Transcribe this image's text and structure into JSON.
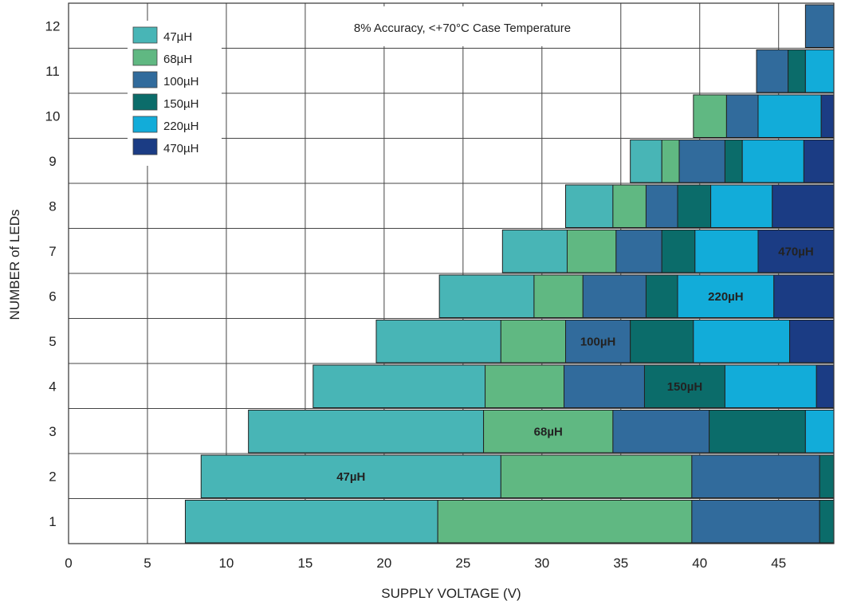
{
  "chart_data": {
    "type": "bar",
    "orientation": "horizontal-stacked-ranges",
    "annotation": "8% Accuracy, <+70°C Case Temperature",
    "xlabel": "SUPPLY VOLTAGE (V)",
    "ylabel": "NUMBER of LEDs",
    "xlim": [
      0,
      48.5
    ],
    "x_ticks": [
      0,
      5,
      10,
      15,
      20,
      25,
      30,
      35,
      40,
      45
    ],
    "y_categories": [
      "1",
      "2",
      "3",
      "4",
      "5",
      "6",
      "7",
      "8",
      "9",
      "10",
      "11",
      "12"
    ],
    "grid": true,
    "legend_position": "top-left",
    "series": [
      {
        "name": "47µH",
        "color": "#48b5b6"
      },
      {
        "name": "68µH",
        "color": "#60b882"
      },
      {
        "name": "100µH",
        "color": "#316b9c"
      },
      {
        "name": "150µH",
        "color": "#0b6c6a"
      },
      {
        "name": "220µH",
        "color": "#12acd9"
      },
      {
        "name": "470µH",
        "color": "#1b3c84"
      }
    ],
    "rows": [
      {
        "leds": 1,
        "segments": [
          {
            "series": "47µH",
            "start": 7.4,
            "end": 23.4
          },
          {
            "series": "68µH",
            "start": 23.4,
            "end": 39.5
          },
          {
            "series": "100µH",
            "start": 39.5,
            "end": 47.6
          },
          {
            "series": "150µH",
            "start": 47.6,
            "end": 48.5
          }
        ]
      },
      {
        "leds": 2,
        "segments": [
          {
            "series": "47µH",
            "start": 8.4,
            "end": 27.4,
            "label": "47µH"
          },
          {
            "series": "68µH",
            "start": 27.4,
            "end": 39.5
          },
          {
            "series": "100µH",
            "start": 39.5,
            "end": 47.6
          },
          {
            "series": "150µH",
            "start": 47.6,
            "end": 48.5
          }
        ]
      },
      {
        "leds": 3,
        "segments": [
          {
            "series": "47µH",
            "start": 11.4,
            "end": 26.3
          },
          {
            "series": "68µH",
            "start": 26.3,
            "end": 34.5,
            "label": "68µH"
          },
          {
            "series": "100µH",
            "start": 34.5,
            "end": 40.6
          },
          {
            "series": "150µH",
            "start": 40.6,
            "end": 46.7
          },
          {
            "series": "220µH",
            "start": 46.7,
            "end": 48.5
          }
        ]
      },
      {
        "leds": 4,
        "segments": [
          {
            "series": "47µH",
            "start": 15.5,
            "end": 26.4
          },
          {
            "series": "68µH",
            "start": 26.4,
            "end": 31.4
          },
          {
            "series": "100µH",
            "start": 31.4,
            "end": 36.5
          },
          {
            "series": "150µH",
            "start": 36.5,
            "end": 41.6,
            "label": "150µH"
          },
          {
            "series": "220µH",
            "start": 41.6,
            "end": 47.4
          },
          {
            "series": "470µH",
            "start": 47.4,
            "end": 48.5
          }
        ]
      },
      {
        "leds": 5,
        "segments": [
          {
            "series": "47µH",
            "start": 19.5,
            "end": 27.4
          },
          {
            "series": "68µH",
            "start": 27.4,
            "end": 31.5
          },
          {
            "series": "100µH",
            "start": 31.5,
            "end": 35.6,
            "label": "100µH"
          },
          {
            "series": "150µH",
            "start": 35.6,
            "end": 39.6
          },
          {
            "series": "220µH",
            "start": 39.6,
            "end": 45.7
          },
          {
            "series": "470µH",
            "start": 45.7,
            "end": 48.5
          }
        ]
      },
      {
        "leds": 6,
        "segments": [
          {
            "series": "47µH",
            "start": 23.5,
            "end": 29.5
          },
          {
            "series": "68µH",
            "start": 29.5,
            "end": 32.6
          },
          {
            "series": "100µH",
            "start": 32.6,
            "end": 36.6
          },
          {
            "series": "150µH",
            "start": 36.6,
            "end": 38.6
          },
          {
            "series": "220µH",
            "start": 38.6,
            "end": 44.7,
            "label": "220µH"
          },
          {
            "series": "470µH",
            "start": 44.7,
            "end": 48.5
          }
        ]
      },
      {
        "leds": 7,
        "segments": [
          {
            "series": "47µH",
            "start": 27.5,
            "end": 31.6
          },
          {
            "series": "68µH",
            "start": 31.6,
            "end": 34.7
          },
          {
            "series": "100µH",
            "start": 34.7,
            "end": 37.6
          },
          {
            "series": "150µH",
            "start": 37.6,
            "end": 39.7
          },
          {
            "series": "220µH",
            "start": 39.7,
            "end": 43.7
          },
          {
            "series": "470µH",
            "start": 43.7,
            "end": 48.5,
            "label": "470µH"
          }
        ]
      },
      {
        "leds": 8,
        "segments": [
          {
            "series": "47µH",
            "start": 31.5,
            "end": 34.5
          },
          {
            "series": "68µH",
            "start": 34.5,
            "end": 36.6
          },
          {
            "series": "100µH",
            "start": 36.6,
            "end": 38.6
          },
          {
            "series": "150µH",
            "start": 38.6,
            "end": 40.7
          },
          {
            "series": "220µH",
            "start": 40.7,
            "end": 44.6
          },
          {
            "series": "470µH",
            "start": 44.6,
            "end": 48.5
          }
        ]
      },
      {
        "leds": 9,
        "segments": [
          {
            "series": "47µH",
            "start": 35.6,
            "end": 37.6
          },
          {
            "series": "68µH",
            "start": 37.6,
            "end": 38.7
          },
          {
            "series": "100µH",
            "start": 38.7,
            "end": 41.6
          },
          {
            "series": "150µH",
            "start": 41.6,
            "end": 42.7
          },
          {
            "series": "220µH",
            "start": 42.7,
            "end": 46.6
          },
          {
            "series": "470µH",
            "start": 46.6,
            "end": 48.5
          }
        ]
      },
      {
        "leds": 10,
        "segments": [
          {
            "series": "68µH",
            "start": 39.6,
            "end": 41.7
          },
          {
            "series": "100µH",
            "start": 41.7,
            "end": 43.7
          },
          {
            "series": "220µH",
            "start": 43.7,
            "end": 47.7
          },
          {
            "series": "470µH",
            "start": 47.7,
            "end": 48.5
          }
        ]
      },
      {
        "leds": 11,
        "segments": [
          {
            "series": "100µH",
            "start": 43.6,
            "end": 45.6
          },
          {
            "series": "150µH",
            "start": 45.6,
            "end": 46.7
          },
          {
            "series": "220µH",
            "start": 46.7,
            "end": 48.5
          }
        ]
      },
      {
        "leds": 12,
        "segments": [
          {
            "series": "100µH",
            "start": 46.7,
            "end": 48.5
          }
        ]
      }
    ]
  }
}
